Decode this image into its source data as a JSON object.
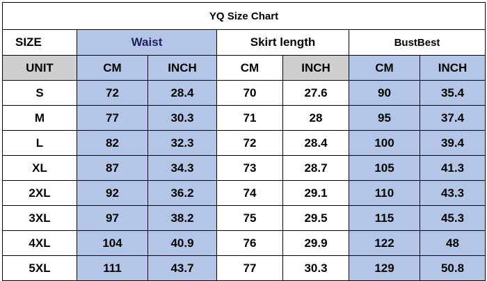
{
  "title": "YQ Size Chart",
  "size_label": "SIZE",
  "unit_label": "UNIT",
  "groups": {
    "waist": "Waist",
    "skirt_length": "Skirt length",
    "bust": "BustBest"
  },
  "units": [
    "CM",
    "INCH",
    "CM",
    "INCH",
    "CM",
    "INCH"
  ],
  "rows": [
    {
      "size": "S",
      "waist_cm": "72",
      "waist_in": "28.4",
      "skirt_cm": "70",
      "skirt_in": "27.6",
      "bust_cm": "90",
      "bust_in": "35.4"
    },
    {
      "size": "M",
      "waist_cm": "77",
      "waist_in": "30.3",
      "skirt_cm": "71",
      "skirt_in": "28",
      "bust_cm": "95",
      "bust_in": "37.4"
    },
    {
      "size": "L",
      "waist_cm": "82",
      "waist_in": "32.3",
      "skirt_cm": "72",
      "skirt_in": "28.4",
      "bust_cm": "100",
      "bust_in": "39.4"
    },
    {
      "size": "XL",
      "waist_cm": "87",
      "waist_in": "34.3",
      "skirt_cm": "73",
      "skirt_in": "28.7",
      "bust_cm": "105",
      "bust_in": "41.3"
    },
    {
      "size": "2XL",
      "waist_cm": "92",
      "waist_in": "36.2",
      "skirt_cm": "74",
      "skirt_in": "29.1",
      "bust_cm": "110",
      "bust_in": "43.3"
    },
    {
      "size": "3XL",
      "waist_cm": "97",
      "waist_in": "38.2",
      "skirt_cm": "75",
      "skirt_in": "29.5",
      "bust_cm": "115",
      "bust_in": "45.3"
    },
    {
      "size": "4XL",
      "waist_cm": "104",
      "waist_in": "40.9",
      "skirt_cm": "76",
      "skirt_in": "29.9",
      "bust_cm": "122",
      "bust_in": "48"
    },
    {
      "size": "5XL",
      "waist_cm": "111",
      "waist_in": "43.7",
      "skirt_cm": "77",
      "skirt_in": "30.3",
      "bust_cm": "129",
      "bust_in": "50.8"
    }
  ],
  "colors": {
    "highlight_blue": "#b4c6e7",
    "unit_gray": "#d0cece",
    "border": "#000000"
  }
}
